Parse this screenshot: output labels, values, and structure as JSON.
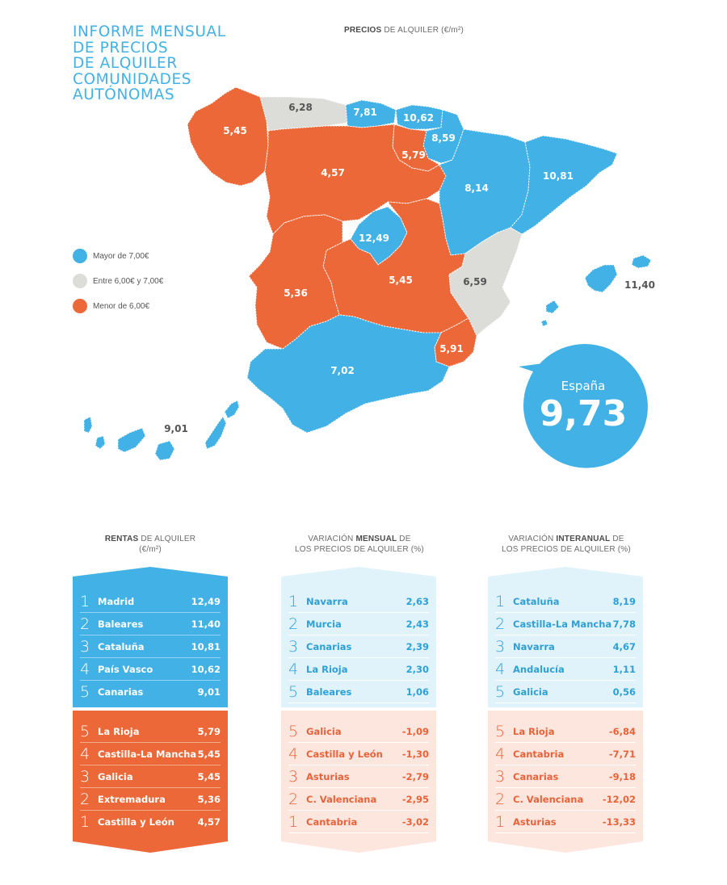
{
  "title": [
    "INFORME MENSUAL",
    "DE PRECIOS",
    "DE ALQUILER",
    "COMUNIDADES",
    "AUTÓNOMAS"
  ],
  "map_header": {
    "bold": "PRECIOS",
    "rest": " DE ALQUILER (€/m²)"
  },
  "legend": [
    {
      "label": "Mayor de 7,00€",
      "color": "#41b1e6"
    },
    {
      "label": "Entre 6,00€ y 7,00€",
      "color": "#dcdcd8"
    },
    {
      "label": "Menor de 6,00€",
      "color": "#ec6838"
    }
  ],
  "colors": {
    "blue": "#41b1e6",
    "grey": "#dcdcd8",
    "orange": "#ec6838",
    "light_blue": "#e0f3fb",
    "light_orange": "#fde6de"
  },
  "map_values": {
    "galicia": "5,45",
    "asturias": "6,28",
    "cantabria": "7,81",
    "pais_vasco": "10,62",
    "navarra": "8,59",
    "la_rioja": "5,79",
    "castilla_leon": "4,57",
    "aragon": "8,14",
    "cataluna": "10,81",
    "madrid": "12,49",
    "castilla_la_mancha": "5,45",
    "extremadura": "5,36",
    "c_valenciana": "6,59",
    "baleares": "11,40",
    "murcia": "5,91",
    "andalucia": "7,02",
    "canarias": "9,01"
  },
  "espana": {
    "label": "España",
    "value": "9,73"
  },
  "columns": [
    {
      "bold": "RENTAS",
      "rest1": " DE ALQUILER",
      "line2": "(€/m²)"
    },
    {
      "pre": "VARIACIÓN ",
      "bold": "MENSUAL",
      "rest1": " DE",
      "line2": "LOS PRECIOS DE ALQUILER (%)"
    },
    {
      "pre": "VARIACIÓN ",
      "bold": "INTERANUAL",
      "rest1": " DE",
      "line2": "LOS PRECIOS DE ALQUILER (%)"
    }
  ],
  "rentas_top": [
    {
      "rank": "1",
      "name": "Madrid",
      "value": "12,49"
    },
    {
      "rank": "2",
      "name": "Baleares",
      "value": "11,40"
    },
    {
      "rank": "3",
      "name": "Cataluña",
      "value": "10,81"
    },
    {
      "rank": "4",
      "name": "País Vasco",
      "value": "10,62"
    },
    {
      "rank": "5",
      "name": "Canarias",
      "value": "9,01"
    }
  ],
  "rentas_bottom": [
    {
      "rank": "5",
      "name": "La Rioja",
      "value": "5,79"
    },
    {
      "rank": "4",
      "name": "Castilla-La Mancha",
      "value": "5,45"
    },
    {
      "rank": "3",
      "name": "Galicia",
      "value": "5,45"
    },
    {
      "rank": "2",
      "name": "Extremadura",
      "value": "5,36"
    },
    {
      "rank": "1",
      "name": "Castilla y León",
      "value": "4,57"
    }
  ],
  "mensual_top": [
    {
      "rank": "1",
      "name": "Navarra",
      "value": "2,63"
    },
    {
      "rank": "2",
      "name": "Murcia",
      "value": "2,43"
    },
    {
      "rank": "3",
      "name": "Canarias",
      "value": "2,39"
    },
    {
      "rank": "4",
      "name": "La Rioja",
      "value": "2,30"
    },
    {
      "rank": "5",
      "name": "Baleares",
      "value": "1,06"
    }
  ],
  "mensual_bottom": [
    {
      "rank": "5",
      "name": "Galicia",
      "value": "-1,09"
    },
    {
      "rank": "4",
      "name": "Castilla y León",
      "value": "-1,30"
    },
    {
      "rank": "3",
      "name": "Asturias",
      "value": "-2,79"
    },
    {
      "rank": "2",
      "name": "C. Valenciana",
      "value": "-2,95"
    },
    {
      "rank": "1",
      "name": "Cantabria",
      "value": "-3,02"
    }
  ],
  "interanual_top": [
    {
      "rank": "1",
      "name": "Cataluña",
      "value": "8,19"
    },
    {
      "rank": "2",
      "name": "Castilla-La Mancha",
      "value": "7,78"
    },
    {
      "rank": "3",
      "name": "Navarra",
      "value": "4,67"
    },
    {
      "rank": "4",
      "name": "Andalucía",
      "value": "1,11"
    },
    {
      "rank": "5",
      "name": "Galicia",
      "value": "0,56"
    }
  ],
  "interanual_bottom": [
    {
      "rank": "5",
      "name": "La Rioja",
      "value": "-6,84"
    },
    {
      "rank": "4",
      "name": "Cantabria",
      "value": "-7,71"
    },
    {
      "rank": "3",
      "name": "Canarias",
      "value": "-9,18"
    },
    {
      "rank": "2",
      "name": "C. Valenciana",
      "value": "-12,02"
    },
    {
      "rank": "1",
      "name": "Asturias",
      "value": "-13,33"
    }
  ]
}
